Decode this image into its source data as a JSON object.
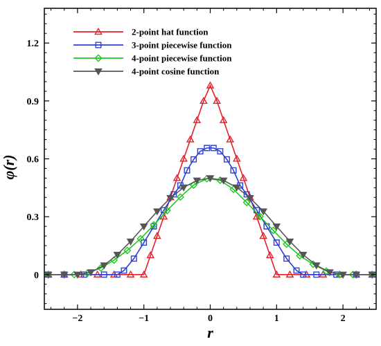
{
  "chart_data": {
    "type": "line",
    "xlabel": "r",
    "ylabel": "φ(r)",
    "xlim": [
      -2.5,
      2.5
    ],
    "ylim": [
      -0.18,
      1.38
    ],
    "xticks": [
      -2,
      -1,
      0,
      1,
      2
    ],
    "xtick_labels": [
      "−2",
      "−1",
      "0",
      "1",
      "2"
    ],
    "yticks": [
      0,
      0.3,
      0.6,
      0.9,
      1.2
    ],
    "ytick_labels": [
      "0",
      "0.3",
      "0.6",
      "0.9",
      "1.2"
    ],
    "legend_position": "top-left",
    "grid": false,
    "series": [
      {
        "name": "2-point hat function",
        "color": "#e4202a",
        "marker": "triangle-up",
        "x": [
          -2.44,
          -2.2,
          -1.95,
          -1.7,
          -1.45,
          -1.2,
          -1.0,
          -0.9,
          -0.8,
          -0.7,
          -0.6,
          -0.5,
          -0.4,
          -0.3,
          -0.2,
          -0.1,
          0.0,
          0.1,
          0.2,
          0.3,
          0.4,
          0.5,
          0.6,
          0.7,
          0.8,
          0.9,
          1.0,
          1.2,
          1.45,
          1.7,
          1.95,
          2.2,
          2.44
        ],
        "y": [
          0,
          0,
          0,
          0,
          0,
          0,
          0,
          0.1,
          0.2,
          0.3,
          0.4,
          0.5,
          0.6,
          0.7,
          0.8,
          0.9,
          0.98,
          0.9,
          0.8,
          0.7,
          0.6,
          0.5,
          0.4,
          0.3,
          0.2,
          0.1,
          0,
          0,
          0,
          0,
          0,
          0,
          0
        ]
      },
      {
        "name": "3-point piecewise function",
        "color": "#2b3fd6",
        "marker": "square",
        "x": [
          -2.44,
          -2.2,
          -1.9,
          -1.6,
          -1.4,
          -1.3,
          -1.15,
          -1.0,
          -0.85,
          -0.7,
          -0.55,
          -0.45,
          -0.35,
          -0.25,
          -0.15,
          -0.05,
          0.05,
          0.15,
          0.25,
          0.35,
          0.45,
          0.55,
          0.7,
          0.85,
          1.0,
          1.15,
          1.3,
          1.4,
          1.6,
          1.9,
          2.2,
          2.44
        ],
        "y": [
          0,
          0,
          0,
          0,
          0,
          0.021,
          0.083,
          0.166,
          0.25,
          0.334,
          0.416,
          0.462,
          0.54,
          0.597,
          0.639,
          0.656,
          0.656,
          0.639,
          0.597,
          0.54,
          0.462,
          0.416,
          0.334,
          0.25,
          0.166,
          0.083,
          0.021,
          0,
          0,
          0,
          0,
          0
        ]
      },
      {
        "name": "4-point piecewise function",
        "color": "#1ec81e",
        "marker": "diamond",
        "x": [
          -2.44,
          -2.05,
          -1.85,
          -1.65,
          -1.45,
          -1.25,
          -1.05,
          -0.85,
          -0.65,
          -0.45,
          -0.25,
          -0.05,
          0.15,
          0.35,
          0.55,
          0.75,
          0.95,
          1.15,
          1.35,
          1.55,
          1.75,
          1.95,
          2.15,
          2.44
        ],
        "y": [
          0,
          0,
          0.007,
          0.034,
          0.075,
          0.125,
          0.186,
          0.257,
          0.332,
          0.402,
          0.464,
          0.497,
          0.489,
          0.442,
          0.374,
          0.301,
          0.229,
          0.158,
          0.098,
          0.054,
          0.018,
          0,
          0,
          0
        ]
      },
      {
        "name": "4-point cosine function",
        "color": "#555555",
        "marker": "triangle-down",
        "x": [
          -2.44,
          -2.2,
          -2.0,
          -1.8,
          -1.6,
          -1.4,
          -1.2,
          -1.0,
          -0.8,
          -0.6,
          -0.4,
          -0.2,
          0.0,
          0.2,
          0.4,
          0.6,
          0.8,
          1.0,
          1.2,
          1.4,
          1.6,
          1.8,
          2.0,
          2.2,
          2.44
        ],
        "y": [
          0,
          0,
          0,
          0.012,
          0.048,
          0.103,
          0.172,
          0.25,
          0.328,
          0.397,
          0.452,
          0.488,
          0.5,
          0.488,
          0.452,
          0.397,
          0.328,
          0.25,
          0.172,
          0.103,
          0.048,
          0.012,
          0,
          0,
          0
        ]
      }
    ]
  }
}
